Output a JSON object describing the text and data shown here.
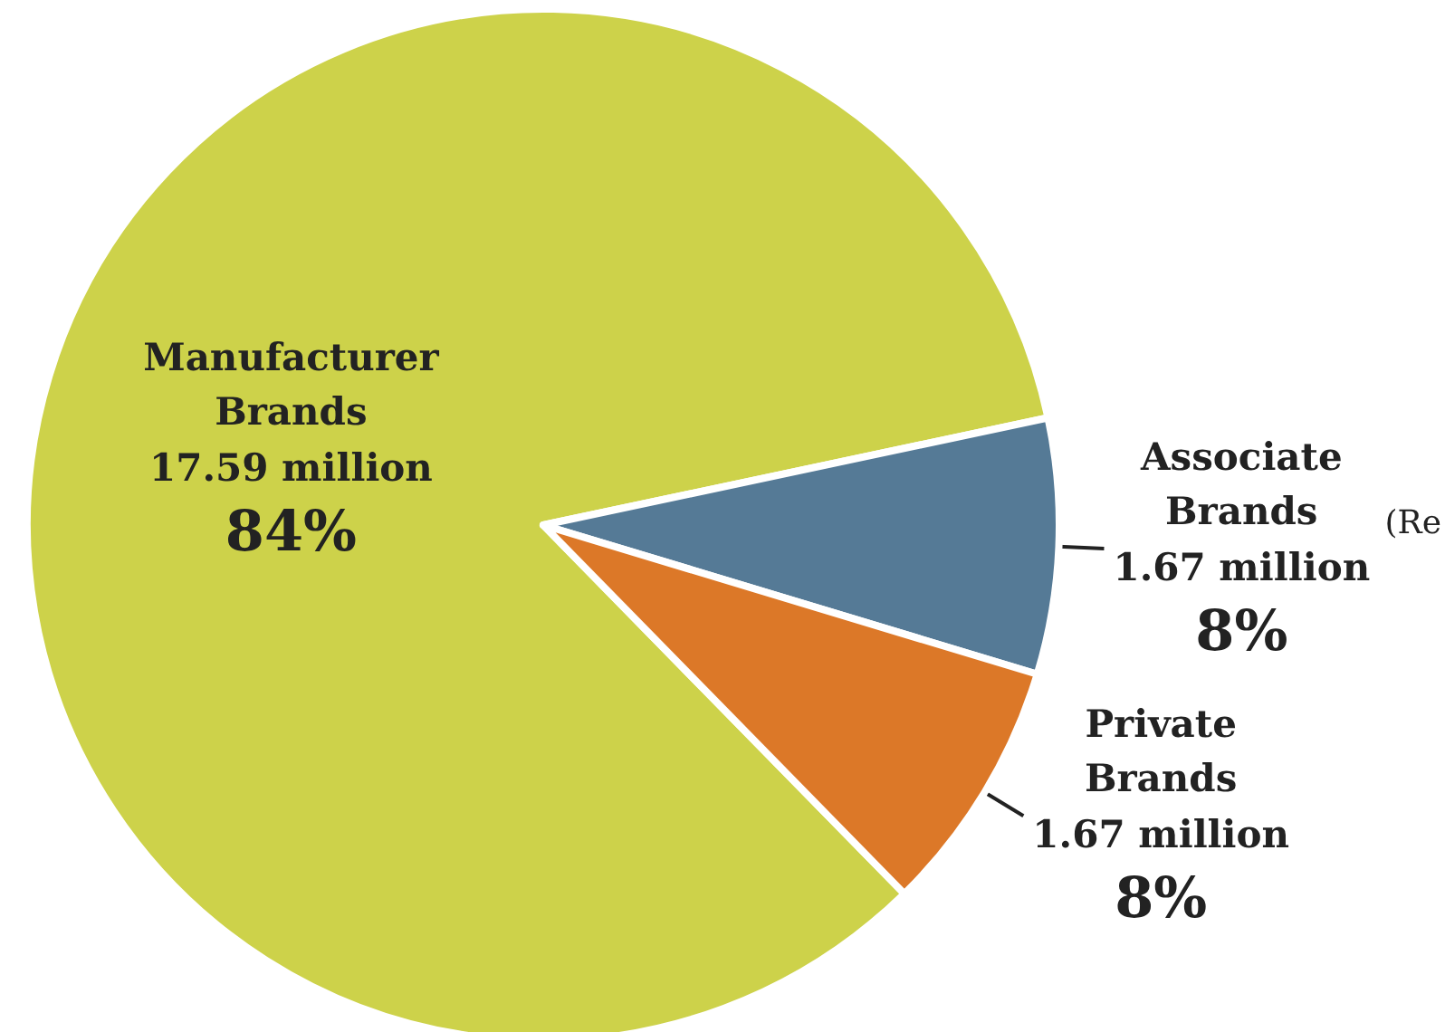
{
  "chart_data": {
    "type": "pie",
    "categories": [
      "Manufacturer Brands",
      "Associate Brands",
      "Private Brands"
    ],
    "values": [
      84,
      8,
      8
    ],
    "colors": [
      "#cdd24a",
      "#557a96",
      "#dc7828"
    ],
    "value_labels": [
      "84%",
      "8%",
      "8%"
    ],
    "annotations": [
      "17.59 million",
      "1.67 million",
      "1.67 million",
      "(Re"
    ],
    "legend": false
  }
}
